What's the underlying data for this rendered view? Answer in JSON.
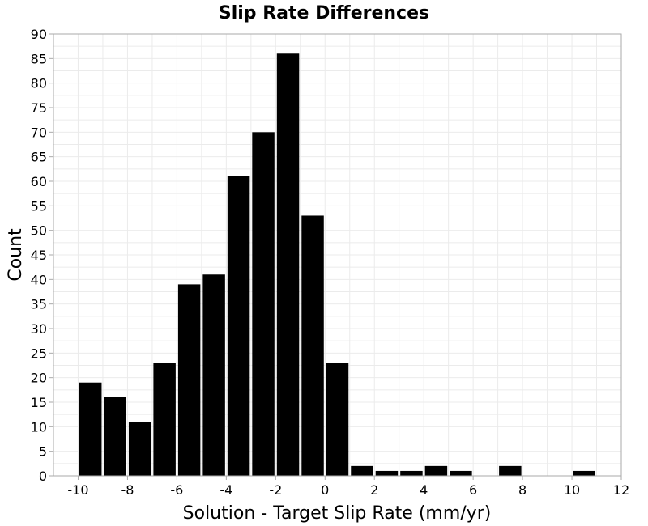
{
  "chart_data": {
    "type": "bar",
    "title": "Slip Rate Differences",
    "xlabel": "Solution - Target Slip Rate (mm/yr)",
    "ylabel": "Count",
    "bin_width": 1,
    "bins": [
      {
        "center": -9.5,
        "count": 19
      },
      {
        "center": -8.5,
        "count": 16
      },
      {
        "center": -7.5,
        "count": 11
      },
      {
        "center": -6.5,
        "count": 23
      },
      {
        "center": -5.5,
        "count": 39
      },
      {
        "center": -4.5,
        "count": 41
      },
      {
        "center": -3.5,
        "count": 61
      },
      {
        "center": -2.5,
        "count": 70
      },
      {
        "center": -1.5,
        "count": 86
      },
      {
        "center": -0.5,
        "count": 53
      },
      {
        "center": 0.5,
        "count": 23
      },
      {
        "center": 1.5,
        "count": 2
      },
      {
        "center": 2.5,
        "count": 1
      },
      {
        "center": 3.5,
        "count": 1
      },
      {
        "center": 4.5,
        "count": 2
      },
      {
        "center": 5.5,
        "count": 1
      },
      {
        "center": 6.5,
        "count": 0
      },
      {
        "center": 7.5,
        "count": 2
      },
      {
        "center": 8.5,
        "count": 0
      },
      {
        "center": 9.5,
        "count": 0
      },
      {
        "center": 10.5,
        "count": 1
      }
    ],
    "xlim": [
      -11,
      12
    ],
    "ylim": [
      0,
      90
    ],
    "xticks": [
      "-10",
      "-8",
      "-6",
      "-4",
      "-2",
      "0",
      "2",
      "4",
      "6",
      "8",
      "10",
      "12"
    ],
    "yticks": [
      "0",
      "5",
      "10",
      "15",
      "20",
      "25",
      "30",
      "35",
      "40",
      "45",
      "50",
      "55",
      "60",
      "65",
      "70",
      "75",
      "80",
      "85",
      "90"
    ],
    "grid": true,
    "legend": "none",
    "colors": {
      "bar": "#000000",
      "grid": "#ebebeb",
      "frame": "#aaaaaa",
      "background": "#ffffff"
    }
  }
}
